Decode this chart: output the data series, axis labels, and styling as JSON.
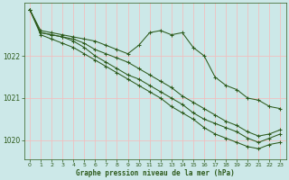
{
  "title": "Graphe pression niveau de la mer (hPa)",
  "bg_color": "#cce8e8",
  "grid_color": "#f0c0c0",
  "line_color": "#2d5a1b",
  "xlim": [
    -0.5,
    23.5
  ],
  "ylim": [
    1019.55,
    1023.25
  ],
  "yticks": [
    1020,
    1021,
    1022
  ],
  "xticks": [
    0,
    1,
    2,
    3,
    4,
    5,
    6,
    7,
    8,
    9,
    10,
    11,
    12,
    13,
    14,
    15,
    16,
    17,
    18,
    19,
    20,
    21,
    22,
    23
  ],
  "series": [
    [
      1023.1,
      1022.6,
      1022.55,
      1022.5,
      1022.45,
      1022.4,
      1022.35,
      1022.25,
      1022.15,
      1022.05,
      1022.25,
      1022.55,
      1022.6,
      1022.5,
      1022.55,
      1022.2,
      1022.0,
      1021.5,
      1021.3,
      1021.2,
      1021.0,
      1020.95,
      1020.8,
      1020.75
    ],
    [
      1023.1,
      1022.55,
      1022.5,
      1022.45,
      1022.4,
      1022.3,
      1022.15,
      1022.05,
      1021.95,
      1021.85,
      1021.7,
      1021.55,
      1021.4,
      1021.25,
      1021.05,
      1020.9,
      1020.75,
      1020.6,
      1020.45,
      1020.35,
      1020.2,
      1020.1,
      1020.15,
      1020.25
    ],
    [
      1023.1,
      1022.55,
      1022.5,
      1022.45,
      1022.35,
      1022.2,
      1022.0,
      1021.85,
      1021.7,
      1021.55,
      1021.45,
      1021.3,
      1021.15,
      1021.0,
      1020.85,
      1020.65,
      1020.5,
      1020.4,
      1020.3,
      1020.2,
      1020.05,
      1019.95,
      1020.05,
      1020.15
    ],
    [
      1023.1,
      1022.5,
      1022.4,
      1022.3,
      1022.2,
      1022.05,
      1021.9,
      1021.75,
      1021.6,
      1021.45,
      1021.3,
      1021.15,
      1021.0,
      1020.8,
      1020.65,
      1020.5,
      1020.3,
      1020.15,
      1020.05,
      1019.95,
      1019.85,
      1019.8,
      1019.9,
      1019.95
    ]
  ]
}
